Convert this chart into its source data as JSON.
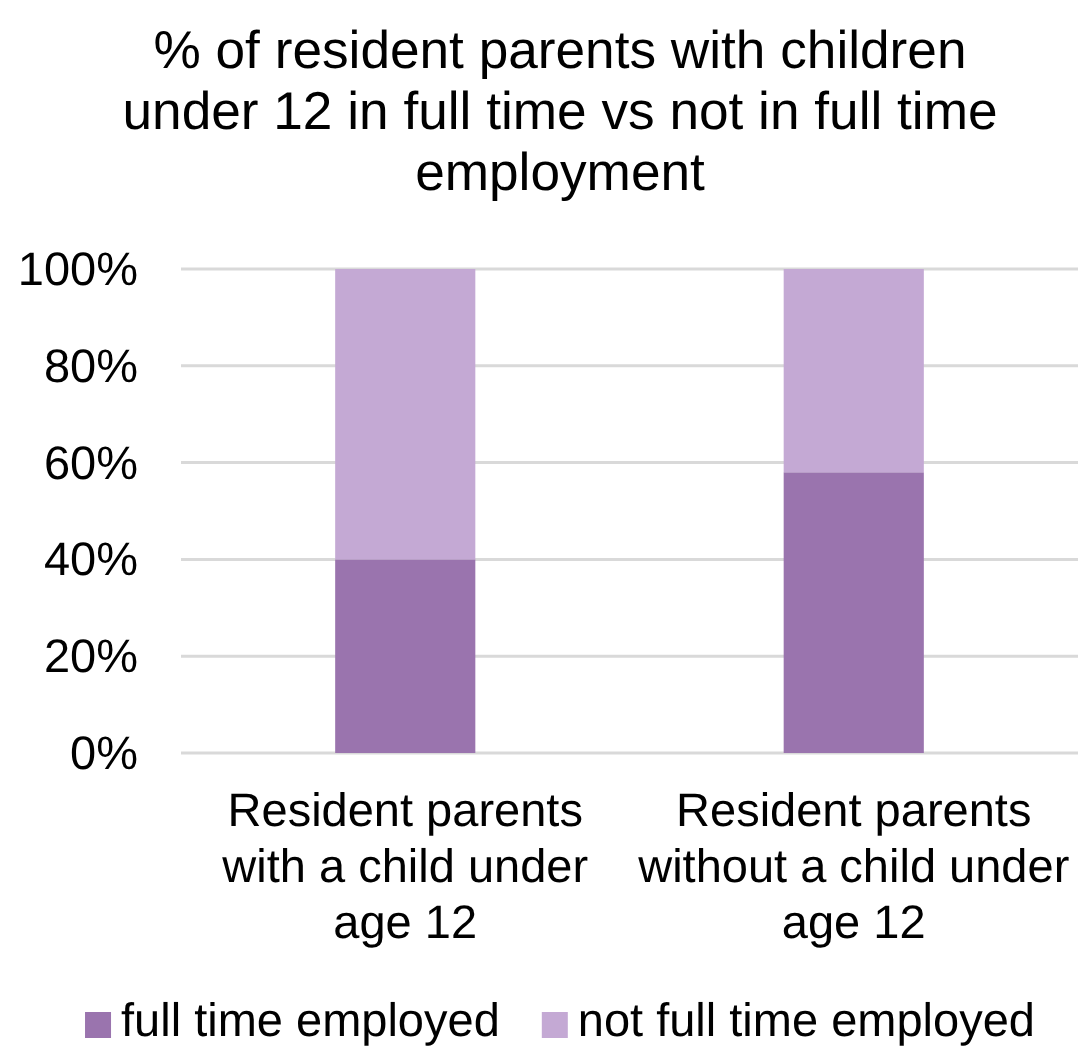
{
  "chart_data": {
    "type": "bar",
    "title": "% of resident parents with children under 12 in full time vs not in full time employment",
    "categories": [
      "Resident parents with a child under age 12",
      "Resident parents without a child under age 12"
    ],
    "series": [
      {
        "name": "full time employed",
        "color": "#9a74ae",
        "values": [
          40,
          58
        ]
      },
      {
        "name": "not full time employed",
        "color": "#c4a9d4",
        "values": [
          60,
          42
        ]
      }
    ],
    "stacked": true,
    "ylim": [
      0,
      100
    ],
    "yticks": [
      {
        "value": 0,
        "label": "0%"
      },
      {
        "value": 20,
        "label": "20%"
      },
      {
        "value": 40,
        "label": "40%"
      },
      {
        "value": 60,
        "label": "60%"
      },
      {
        "value": 80,
        "label": "80%"
      },
      {
        "value": 100,
        "label": "100%"
      }
    ],
    "grid": "y",
    "legend": "bottom"
  }
}
